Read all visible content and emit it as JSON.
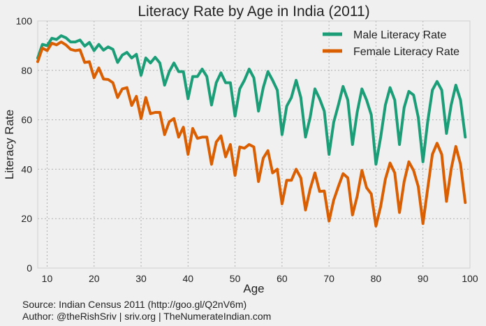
{
  "chart_data": {
    "type": "line",
    "title": "Literacy Rate by Age in India (2011)",
    "xlabel": "Age",
    "ylabel": "Literacy Rate",
    "xlim": [
      8,
      100
    ],
    "ylim": [
      0,
      100
    ],
    "x_ticks": [
      10,
      20,
      30,
      40,
      50,
      60,
      70,
      80,
      90,
      100
    ],
    "y_ticks": [
      0,
      20,
      40,
      60,
      80,
      100
    ],
    "grid": true,
    "legend_position": "top-right",
    "x": [
      8,
      9,
      10,
      11,
      12,
      13,
      14,
      15,
      16,
      17,
      18,
      19,
      20,
      21,
      22,
      23,
      24,
      25,
      26,
      27,
      28,
      29,
      30,
      31,
      32,
      33,
      34,
      35,
      36,
      37,
      38,
      39,
      40,
      41,
      42,
      43,
      44,
      45,
      46,
      47,
      48,
      49,
      50,
      51,
      52,
      53,
      54,
      55,
      56,
      57,
      58,
      59,
      60,
      61,
      62,
      63,
      64,
      65,
      66,
      67,
      68,
      69,
      70,
      71,
      72,
      73,
      74,
      75,
      76,
      77,
      78,
      79,
      80,
      81,
      82,
      83,
      84,
      85,
      86,
      87,
      88,
      89,
      90,
      91,
      92,
      93,
      94,
      95,
      96,
      97,
      98,
      99
    ],
    "series": [
      {
        "name": "Male Literacy Rate",
        "color": "#1b9e77",
        "values": [
          85,
          90.5,
          90,
          93,
          92.5,
          94,
          93.2,
          91.5,
          91.5,
          92.3,
          89.8,
          91.3,
          88,
          90.5,
          88.2,
          89.5,
          88.5,
          83.2,
          86.2,
          87.3,
          85,
          86.5,
          78,
          85,
          83,
          85.3,
          83,
          74,
          79.5,
          83,
          79.5,
          79.5,
          68.5,
          77.5,
          77.5,
          80.5,
          77.5,
          66,
          75,
          79,
          75,
          75,
          61.5,
          72.5,
          76,
          80.5,
          77,
          63.5,
          73,
          79.5,
          76,
          72,
          54,
          65.5,
          69,
          76,
          69,
          53,
          61,
          72.5,
          68.5,
          63.5,
          46,
          59,
          66,
          73.5,
          68,
          50,
          63,
          72.5,
          68,
          62,
          42,
          53,
          66,
          73,
          68,
          50,
          65,
          71.5,
          70,
          61,
          43,
          59,
          72,
          75.5,
          72,
          54.5,
          66,
          74,
          68,
          53
        ]
      },
      {
        "name": "Female Literacy Rate",
        "color": "#d95f02",
        "values": [
          83.5,
          89,
          88,
          91,
          90.3,
          91.5,
          90.3,
          88.5,
          88,
          88.3,
          83.2,
          83.5,
          77,
          81,
          76.5,
          76.3,
          75,
          69,
          72.5,
          73,
          65.8,
          69.5,
          60.5,
          69,
          62.5,
          63,
          63,
          54,
          59.2,
          60.5,
          53,
          57,
          46,
          56.5,
          52.5,
          53,
          53,
          42,
          51,
          53.5,
          45,
          50,
          37.5,
          49,
          48.5,
          50,
          49,
          35,
          44.5,
          47.5,
          38.5,
          40,
          26,
          35.5,
          35.5,
          40,
          36.5,
          23.5,
          32,
          38.5,
          31,
          31.2,
          19,
          27.5,
          33,
          38.2,
          36.5,
          21.5,
          29,
          39.5,
          32.5,
          30,
          17,
          25,
          36,
          42.5,
          38.5,
          22.5,
          35,
          43,
          39.5,
          33,
          18,
          32,
          46,
          50.5,
          46,
          27,
          40,
          49.2,
          42,
          26.5
        ]
      }
    ]
  },
  "footer": {
    "source": "Source: Indian Census 2011 (http://goo.gl/Q2nV6m)",
    "author": "Author: @theRishSriv | sriv.org | TheNumerateIndian.com"
  }
}
